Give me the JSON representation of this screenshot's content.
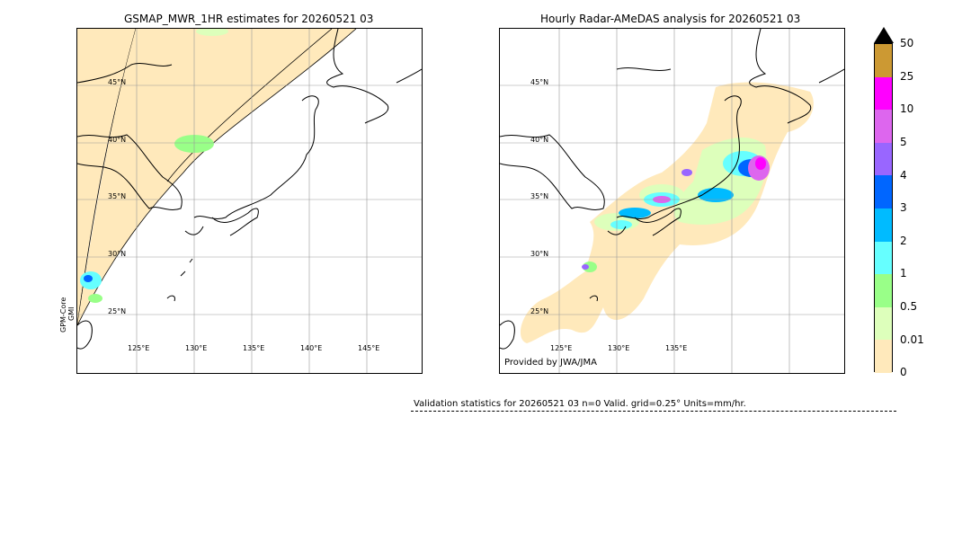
{
  "left_panel": {
    "title": "GSMAP_MWR_1HR estimates for 20260521 03",
    "side_label_line1": "GPM-Core",
    "side_label_line2": "GMI",
    "lat_labels": [
      "45°N",
      "40°N",
      "35°N",
      "30°N",
      "25°N"
    ],
    "lon_labels": [
      "125°E",
      "130°E",
      "135°E",
      "140°E",
      "145°E"
    ]
  },
  "right_panel": {
    "title": "Hourly Radar-AMeDAS analysis for 20260521 03",
    "credit": "Provided by JWA/JMA",
    "lat_labels": [
      "45°N",
      "40°N",
      "35°N",
      "30°N",
      "25°N"
    ],
    "lon_labels": [
      "125°E",
      "130°E",
      "135°E"
    ]
  },
  "colorbar": {
    "ticks": [
      "50",
      "25",
      "10",
      "5",
      "4",
      "3",
      "2",
      "1",
      "0.5",
      "0.01",
      "0"
    ],
    "colors": [
      "#cc9933",
      "#ff00ff",
      "#dd66ee",
      "#9966ff",
      "#0066ff",
      "#00bbff",
      "#66ffff",
      "#99ff88",
      "#ddffbb",
      "#ffe9bb"
    ],
    "over_color": "#000000"
  },
  "footer": {
    "validation_text": "Validation statistics for 20260521 03  n=0 Valid. grid=0.25° Units=mm/hr."
  }
}
